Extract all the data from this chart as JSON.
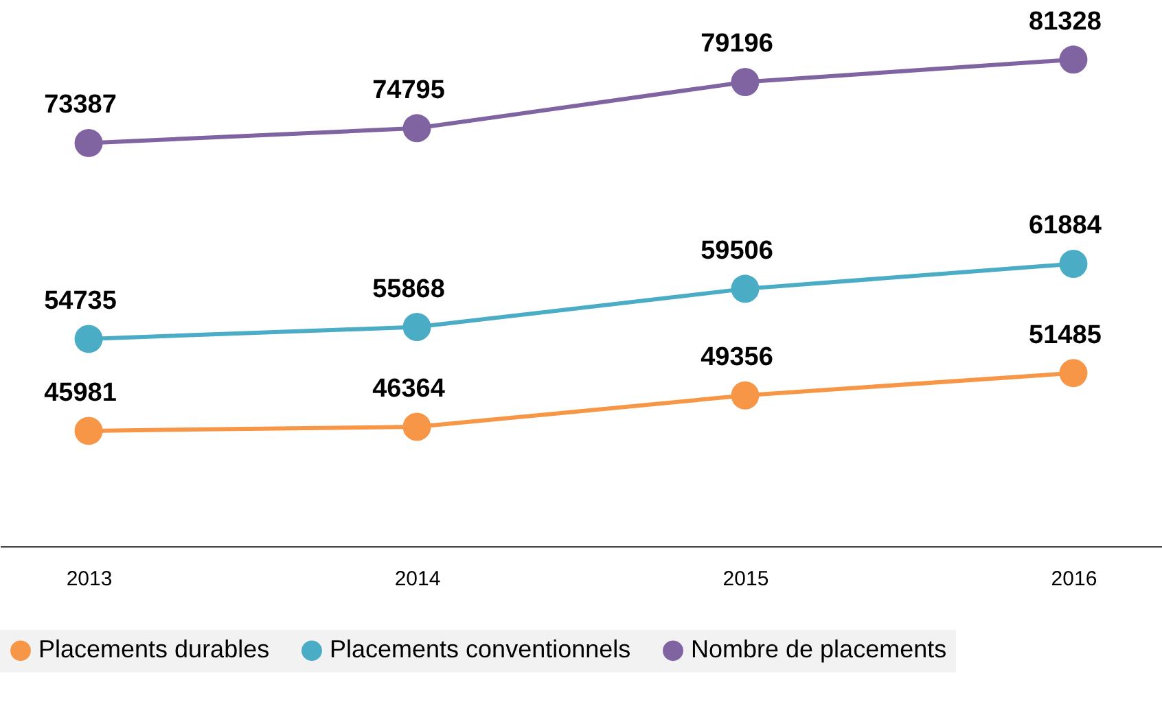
{
  "chart_data": {
    "type": "line",
    "categories": [
      "2013",
      "2014",
      "2015",
      "2016"
    ],
    "series": [
      {
        "name": "Placements durables",
        "color": "#f79646",
        "values": [
          45981,
          46364,
          49356,
          51485
        ]
      },
      {
        "name": "Placements conventionnels",
        "color": "#4bacc6",
        "values": [
          54735,
          55868,
          59506,
          61884
        ]
      },
      {
        "name": "Nombre de placements",
        "color": "#8064a2",
        "values": [
          73387,
          74795,
          79196,
          81328
        ]
      }
    ],
    "ylim": [
      35000,
      87000
    ],
    "data_labels": true,
    "legend": "bottom",
    "marker": "circle",
    "line_style": "solid",
    "tick_labels": "x"
  }
}
